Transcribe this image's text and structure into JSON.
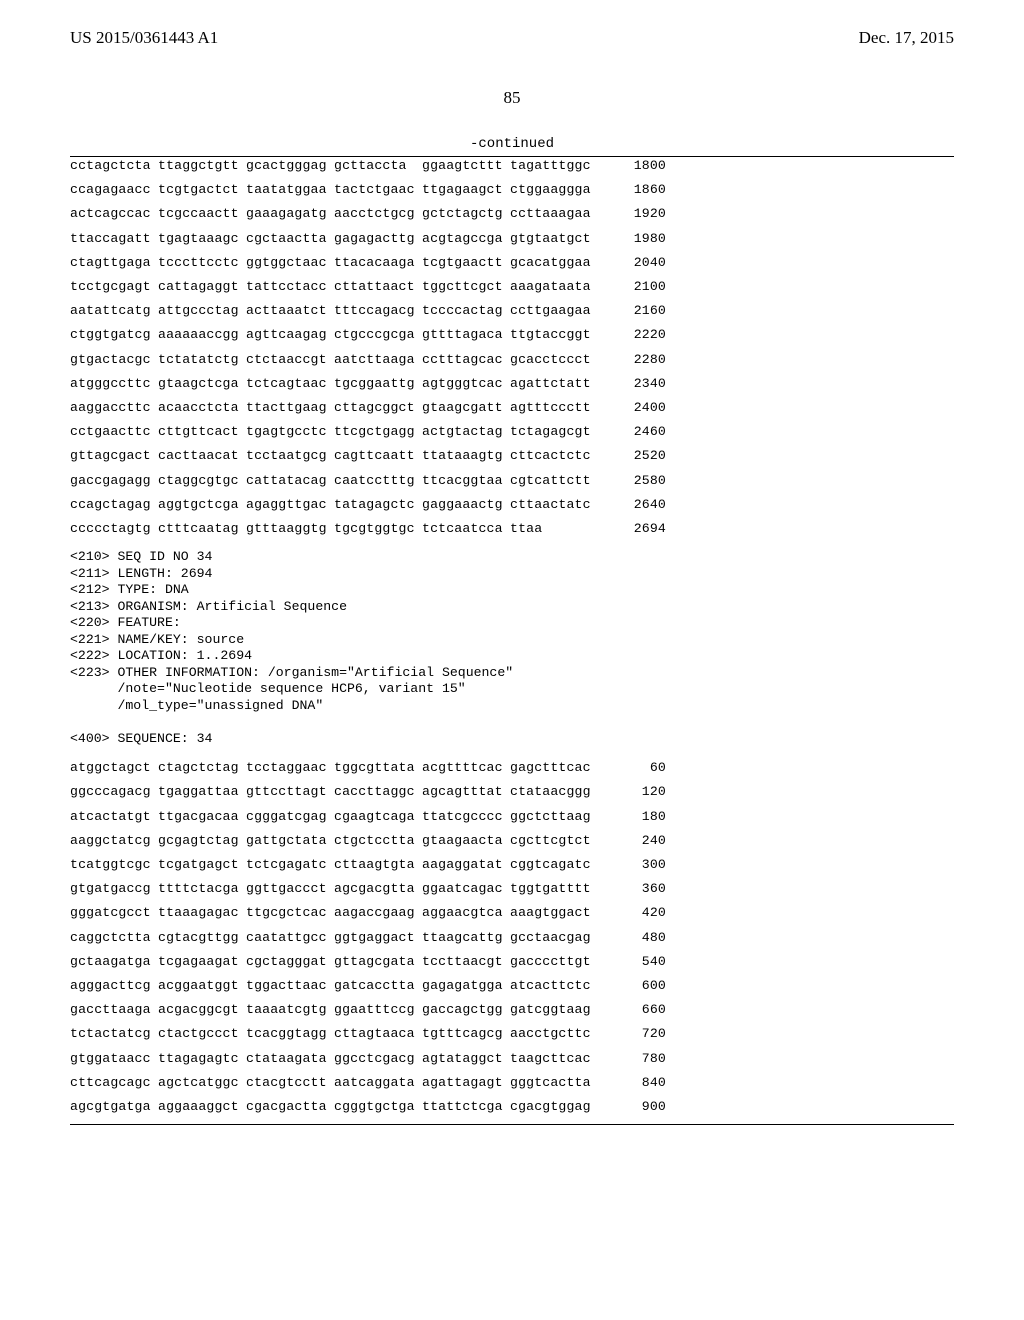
{
  "header": {
    "left": "US 2015/0361443 A1",
    "right": "Dec. 17, 2015"
  },
  "page_number": "85",
  "continued_label": "-continued",
  "seq_block_1": [
    {
      "g": [
        "cctagctcta",
        "ttaggctgtt",
        "gcactgggag",
        "gcttaccta",
        "ggaagtcttt",
        "tagatttggc"
      ],
      "p": "1800"
    },
    {
      "g": [
        "ccagagaacc",
        "tcgtgactct",
        "taatatggaa",
        "tactctgaac",
        "ttgagaagct",
        "ctggaaggga"
      ],
      "p": "1860"
    },
    {
      "g": [
        "actcagccac",
        "tcgccaactt",
        "gaaagagatg",
        "aacctctgcg",
        "gctctagctg",
        "ccttaaagaa"
      ],
      "p": "1920"
    },
    {
      "g": [
        "ttaccagatt",
        "tgagtaaagc",
        "cgctaactta",
        "gagagacttg",
        "acgtagccga",
        "gtgtaatgct"
      ],
      "p": "1980"
    },
    {
      "g": [
        "ctagttgaga",
        "tcccttcctc",
        "ggtggctaac",
        "ttacacaaga",
        "tcgtgaactt",
        "gcacatggaa"
      ],
      "p": "2040"
    },
    {
      "g": [
        "tcctgcgagt",
        "cattagaggt",
        "tattcctacc",
        "cttattaact",
        "tggcttcgct",
        "aaagataata"
      ],
      "p": "2100"
    },
    {
      "g": [
        "aatattcatg",
        "attgccctag",
        "acttaaatct",
        "tttccagacg",
        "tccccactag",
        "ccttgaagaa"
      ],
      "p": "2160"
    },
    {
      "g": [
        "ctggtgatcg",
        "aaaaaaccgg",
        "agttcaagag",
        "ctgcccgcga",
        "gttttagaca",
        "ttgtaccggt"
      ],
      "p": "2220"
    },
    {
      "g": [
        "gtgactacgc",
        "tctatatctg",
        "ctctaaccgt",
        "aatcttaaga",
        "cctttagcac",
        "gcacctccct"
      ],
      "p": "2280"
    },
    {
      "g": [
        "atgggccttc",
        "gtaagctcga",
        "tctcagtaac",
        "tgcggaattg",
        "agtgggtcac",
        "agattctatt"
      ],
      "p": "2340"
    },
    {
      "g": [
        "aaggaccttc",
        "acaacctcta",
        "ttacttgaag",
        "cttagcggct",
        "gtaagcgatt",
        "agtttccctt"
      ],
      "p": "2400"
    },
    {
      "g": [
        "cctgaacttc",
        "cttgttcact",
        "tgagtgcctc",
        "ttcgctgagg",
        "actgtactag",
        "tctagagcgt"
      ],
      "p": "2460"
    },
    {
      "g": [
        "gttagcgact",
        "cacttaacat",
        "tcctaatgcg",
        "cagttcaatt",
        "ttataaagtg",
        "cttcactctc"
      ],
      "p": "2520"
    },
    {
      "g": [
        "gaccgagagg",
        "ctaggcgtgc",
        "cattatacag",
        "caatcctttg",
        "ttcacggtaa",
        "cgtcattctt"
      ],
      "p": "2580"
    },
    {
      "g": [
        "ccagctagag",
        "aggtgctcga",
        "agaggttgac",
        "tatagagctc",
        "gaggaaactg",
        "cttaactatc"
      ],
      "p": "2640"
    },
    {
      "g": [
        "ccccctagtg",
        "ctttcaatag",
        "gtttaaggtg",
        "tgcgtggtgc",
        "tctcaatcca",
        "ttaa"
      ],
      "p": "2694"
    }
  ],
  "meta_block": "<210> SEQ ID NO 34\n<211> LENGTH: 2694\n<212> TYPE: DNA\n<213> ORGANISM: Artificial Sequence\n<220> FEATURE:\n<221> NAME/KEY: source\n<222> LOCATION: 1..2694\n<223> OTHER INFORMATION: /organism=\"Artificial Sequence\"\n      /note=\"Nucleotide sequence HCP6, variant 15\"\n      /mol_type=\"unassigned DNA\"\n\n<400> SEQUENCE: 34",
  "seq_block_2": [
    {
      "g": [
        "atggctagct",
        "ctagctctag",
        "tcctaggaac",
        "tggcgttata",
        "acgttttcac",
        "gagctttcac"
      ],
      "p": "60"
    },
    {
      "g": [
        "ggcccagacg",
        "tgaggattaa",
        "gttccttagt",
        "caccttaggc",
        "agcagtttat",
        "ctataacggg"
      ],
      "p": "120"
    },
    {
      "g": [
        "atcactatgt",
        "ttgacgacaa",
        "cgggatcgag",
        "cgaagtcaga",
        "ttatcgcccc",
        "ggctcttaag"
      ],
      "p": "180"
    },
    {
      "g": [
        "aaggctatcg",
        "gcgagtctag",
        "gattgctata",
        "ctgctcctta",
        "gtaagaacta",
        "cgcttcgtct"
      ],
      "p": "240"
    },
    {
      "g": [
        "tcatggtcgc",
        "tcgatgagct",
        "tctcgagatc",
        "cttaagtgta",
        "aagaggatat",
        "cggtcagatc"
      ],
      "p": "300"
    },
    {
      "g": [
        "gtgatgaccg",
        "ttttctacga",
        "ggttgaccct",
        "agcgacgtta",
        "ggaatcagac",
        "tggtgatttt"
      ],
      "p": "360"
    },
    {
      "g": [
        "gggatcgcct",
        "ttaaagagac",
        "ttgcgctcac",
        "aagaccgaag",
        "aggaacgtca",
        "aaagtggact"
      ],
      "p": "420"
    },
    {
      "g": [
        "caggctctta",
        "cgtacgttgg",
        "caatattgcc",
        "ggtgaggact",
        "ttaagcattg",
        "gcctaacgag"
      ],
      "p": "480"
    },
    {
      "g": [
        "gctaagatga",
        "tcgagaagat",
        "cgctagggat",
        "gttagcgata",
        "tccttaacgt",
        "gaccccttgt"
      ],
      "p": "540"
    },
    {
      "g": [
        "agggacttcg",
        "acggaatggt",
        "tggacttaac",
        "gatcacctta",
        "gagagatgga",
        "atcacttctc"
      ],
      "p": "600"
    },
    {
      "g": [
        "gaccttaaga",
        "acgacggcgt",
        "taaaatcgtg",
        "ggaatttccg",
        "gaccagctgg",
        "gatcggtaag"
      ],
      "p": "660"
    },
    {
      "g": [
        "tctactatcg",
        "ctactgccct",
        "tcacggtagg",
        "cttagtaaca",
        "tgtttcagcg",
        "aacctgcttc"
      ],
      "p": "720"
    },
    {
      "g": [
        "gtggataacc",
        "ttagagagtc",
        "ctataagata",
        "ggcctcgacg",
        "agtataggct",
        "taagcttcac"
      ],
      "p": "780"
    },
    {
      "g": [
        "cttcagcagc",
        "agctcatggc",
        "ctacgtcctt",
        "aatcaggata",
        "agattagagt",
        "gggtcactta"
      ],
      "p": "840"
    },
    {
      "g": [
        "agcgtgatga",
        "aggaaaggct",
        "cgacgactta",
        "cgggtgctga",
        "ttattctcga",
        "cgacgtggag"
      ],
      "p": "900"
    }
  ],
  "colors": {
    "text": "#000000",
    "bg": "#ffffff",
    "rule": "#000000"
  },
  "fonts": {
    "serif": "Times New Roman",
    "mono": "Courier New",
    "header_size_pt": 13,
    "mono_size_pt": 10
  }
}
